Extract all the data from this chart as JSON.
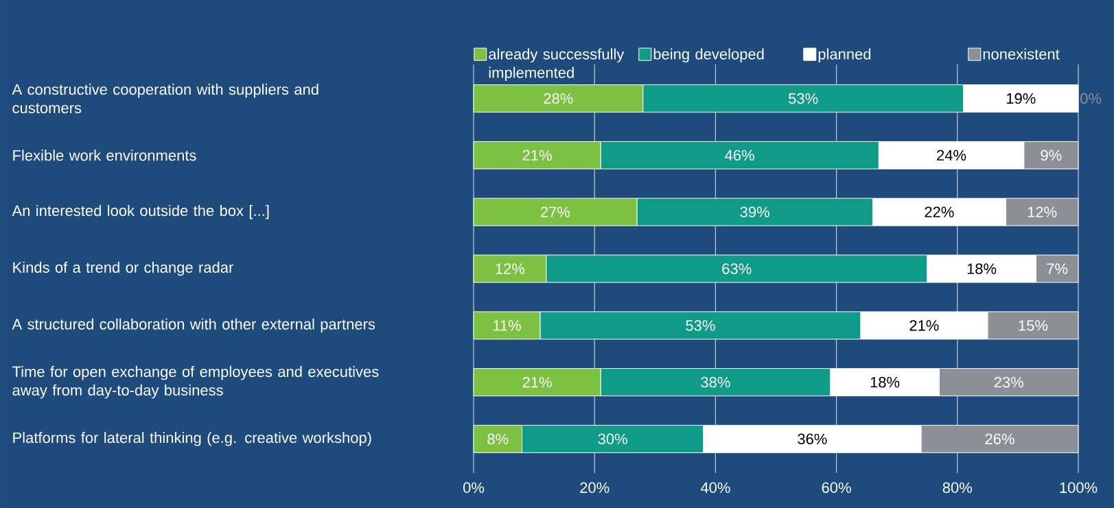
{
  "chart_data": {
    "type": "bar",
    "orientation": "horizontal",
    "stacked": true,
    "categories": [
      "A constructive cooperation with suppliers and customers",
      "Flexible work environments",
      "An interested look outside the box [...]",
      "Kinds of a trend or change radar",
      "A structured collaboration with other external partners",
      "Time for open exchange of employees and executives away from day-to-day business",
      "Platforms for lateral thinking (e.g. creative workshop)"
    ],
    "series": [
      {
        "name": "already successfully implemented",
        "color": "#7dc142",
        "values": [
          28,
          21,
          27,
          12,
          11,
          21,
          8
        ],
        "value_labels": [
          "28%",
          "21%",
          "27%",
          "12%",
          "11%",
          "21%",
          "8%"
        ]
      },
      {
        "name": "being developed",
        "color": "#0f9b87",
        "values": [
          53,
          46,
          39,
          63,
          53,
          38,
          30
        ],
        "value_labels": [
          "53%",
          "46%",
          "39%",
          "63%",
          "53%",
          "38%",
          "30%"
        ]
      },
      {
        "name": "planned",
        "color": "#ffffff",
        "values": [
          19,
          24,
          22,
          18,
          21,
          18,
          36
        ],
        "value_labels": [
          "19%",
          "24%",
          "22%",
          "18%",
          "21%",
          "18%",
          "36%"
        ]
      },
      {
        "name": "nonexistent",
        "color": "#8c9096",
        "values": [
          0,
          9,
          12,
          7,
          15,
          23,
          26
        ],
        "value_labels": [
          "0%",
          "9%",
          "12%",
          "7%",
          "15%",
          "23%",
          "26%"
        ]
      }
    ],
    "xlim": [
      0,
      100
    ],
    "xticks": [
      {
        "value": 0,
        "label": "0%"
      },
      {
        "value": 20,
        "label": "20%"
      },
      {
        "value": 40,
        "label": "40%"
      },
      {
        "value": 60,
        "label": "60%"
      },
      {
        "value": 80,
        "label": "80%"
      },
      {
        "value": 100,
        "label": "100%"
      }
    ],
    "grid": "x",
    "legend": "top right"
  }
}
